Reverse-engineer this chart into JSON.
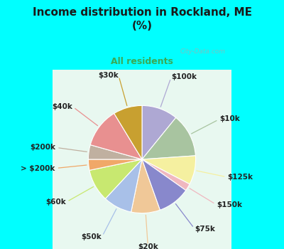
{
  "title": "Income distribution in Rockland, ME\n(%)",
  "subtitle": "All residents",
  "title_color": "#1a1a1a",
  "subtitle_color": "#3aaa55",
  "bg_top": "#00ffff",
  "watermark": "City-Data.com",
  "slices": [
    {
      "label": "$100k",
      "value": 10,
      "color": "#aea8d3"
    },
    {
      "label": "$10k",
      "value": 12,
      "color": "#a8c4a0"
    },
    {
      "label": "$125k",
      "value": 8,
      "color": "#f5f0a0"
    },
    {
      "label": "$150k",
      "value": 2,
      "color": "#f0b8c0"
    },
    {
      "label": "$75k",
      "value": 9,
      "color": "#8888cc"
    },
    {
      "label": "$20k",
      "value": 8,
      "color": "#f0c898"
    },
    {
      "label": "$50k",
      "value": 8,
      "color": "#a8c0e8"
    },
    {
      "label": "$60k",
      "value": 9,
      "color": "#c8e870"
    },
    {
      "label": "> $200k",
      "value": 3,
      "color": "#f0a868"
    },
    {
      "label": "$200k",
      "value": 4,
      "color": "#c0b0a0"
    },
    {
      "label": "$40k",
      "value": 11,
      "color": "#e89090"
    },
    {
      "label": "$30k",
      "value": 8,
      "color": "#c8a030"
    }
  ],
  "start_angle": 90,
  "label_fontsize": 7.5,
  "label_color": "#222222"
}
